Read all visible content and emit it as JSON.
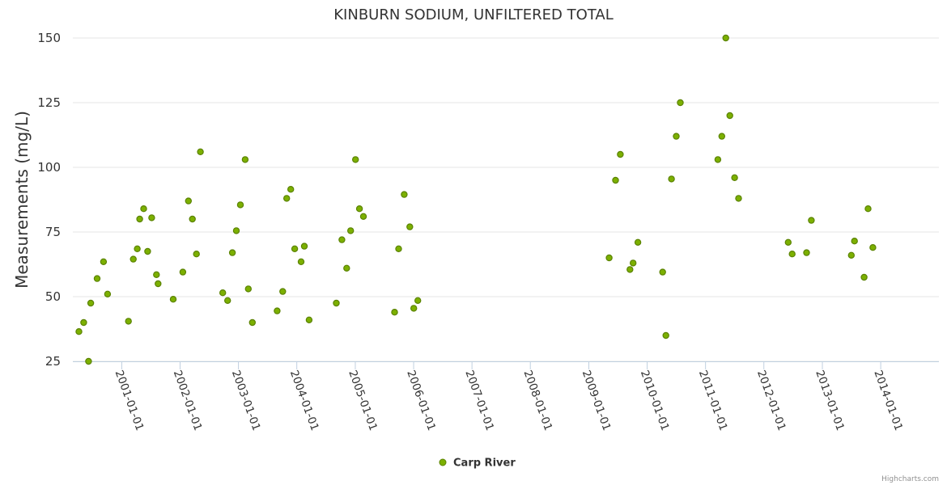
{
  "chart_data": {
    "type": "scatter",
    "title": "KINBURN SODIUM, UNFILTERED TOTAL",
    "xlabel": "",
    "ylabel": "Measurements (mg/L)",
    "ylim": [
      25,
      150
    ],
    "yticks": [
      25,
      50,
      75,
      100,
      125,
      150
    ],
    "xlim": [
      "2000-03-01",
      "2014-12-31"
    ],
    "xticks": [
      "2001-01-01",
      "2002-01-01",
      "2003-01-01",
      "2004-01-01",
      "2005-01-01",
      "2006-01-01",
      "2007-01-01",
      "2008-01-01",
      "2009-01-01",
      "2010-01-01",
      "2011-01-01",
      "2012-01-01",
      "2013-01-01",
      "2014-01-01"
    ],
    "grid": true,
    "legend_position": "bottom-center",
    "credits": "Highcharts.com",
    "series": [
      {
        "name": "Carp River",
        "color": "#7cb000",
        "stroke": "#5a8200",
        "points": [
          [
            "2000-04-08",
            36.5
          ],
          [
            "2000-05-08",
            40
          ],
          [
            "2000-06-07",
            25
          ],
          [
            "2000-06-21",
            47.5
          ],
          [
            "2000-07-31",
            57
          ],
          [
            "2000-09-09",
            63.5
          ],
          [
            "2000-10-04",
            51
          ],
          [
            "2001-02-12",
            40.5
          ],
          [
            "2001-03-14",
            64.5
          ],
          [
            "2001-04-08",
            68.5
          ],
          [
            "2001-04-23",
            80
          ],
          [
            "2001-05-18",
            84
          ],
          [
            "2001-06-12",
            67.5
          ],
          [
            "2001-07-07",
            80.5
          ],
          [
            "2001-08-06",
            58.5
          ],
          [
            "2001-08-16",
            55
          ],
          [
            "2001-11-19",
            49
          ],
          [
            "2002-01-18",
            59.5
          ],
          [
            "2002-02-22",
            87
          ],
          [
            "2002-03-19",
            80
          ],
          [
            "2002-04-13",
            66.5
          ],
          [
            "2002-05-08",
            106
          ],
          [
            "2002-09-25",
            51.5
          ],
          [
            "2002-10-25",
            48.5
          ],
          [
            "2002-11-24",
            67
          ],
          [
            "2002-12-19",
            75.5
          ],
          [
            "2003-01-13",
            85.5
          ],
          [
            "2003-02-12",
            103
          ],
          [
            "2003-03-04",
            53
          ],
          [
            "2003-03-29",
            40
          ],
          [
            "2003-08-31",
            44.5
          ],
          [
            "2003-10-05",
            52
          ],
          [
            "2003-10-30",
            88
          ],
          [
            "2003-11-24",
            91.5
          ],
          [
            "2003-12-19",
            68.5
          ],
          [
            "2004-01-28",
            63.5
          ],
          [
            "2004-02-17",
            69.5
          ],
          [
            "2004-03-18",
            41
          ],
          [
            "2004-09-04",
            47.5
          ],
          [
            "2004-10-09",
            72
          ],
          [
            "2004-11-08",
            61
          ],
          [
            "2004-12-03",
            75.5
          ],
          [
            "2005-01-02",
            103
          ],
          [
            "2005-01-27",
            84
          ],
          [
            "2005-02-21",
            81
          ],
          [
            "2005-09-04",
            44
          ],
          [
            "2005-09-29",
            68.5
          ],
          [
            "2005-11-03",
            89.5
          ],
          [
            "2005-12-08",
            77
          ],
          [
            "2006-01-02",
            45.5
          ],
          [
            "2006-01-27",
            48.5
          ],
          [
            "2009-05-08",
            65
          ],
          [
            "2009-06-17",
            95
          ],
          [
            "2009-07-17",
            105
          ],
          [
            "2009-09-15",
            60.5
          ],
          [
            "2009-10-05",
            63
          ],
          [
            "2009-11-04",
            71
          ],
          [
            "2010-04-08",
            59.5
          ],
          [
            "2010-04-28",
            35
          ],
          [
            "2010-06-02",
            95.5
          ],
          [
            "2010-07-02",
            112
          ],
          [
            "2010-07-27",
            125
          ],
          [
            "2011-03-19",
            103
          ],
          [
            "2011-04-13",
            112
          ],
          [
            "2011-05-08",
            150
          ],
          [
            "2011-06-02",
            120
          ],
          [
            "2011-07-02",
            96
          ],
          [
            "2011-07-27",
            88
          ],
          [
            "2012-06-01",
            71
          ],
          [
            "2012-06-26",
            66.5
          ],
          [
            "2012-09-24",
            67
          ],
          [
            "2012-10-24",
            79.5
          ],
          [
            "2013-07-01",
            66
          ],
          [
            "2013-07-21",
            71.5
          ],
          [
            "2013-09-19",
            57.5
          ],
          [
            "2013-10-14",
            84
          ],
          [
            "2013-11-13",
            69
          ]
        ]
      }
    ]
  }
}
